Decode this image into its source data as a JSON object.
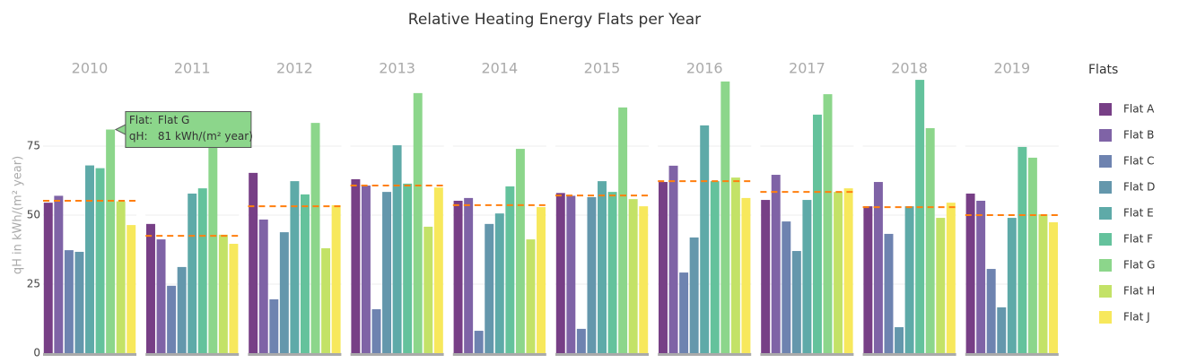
{
  "chart_data": {
    "type": "bar",
    "title": "Relative Heating Energy Flats per Year",
    "y_label": "qH in kWh/(m² year)",
    "legend_title": "Flats",
    "ylim": [
      0,
      100
    ],
    "yticks": [
      0,
      25,
      50,
      75
    ],
    "grid": true,
    "categories": [
      "2010",
      "2011",
      "2012",
      "2013",
      "2014",
      "2015",
      "2016",
      "2017",
      "2018",
      "2019"
    ],
    "series": [
      {
        "name": "Flat A",
        "color": "#773f86",
        "values": [
          54.5,
          46.8,
          65.3,
          63,
          55.2,
          58,
          62,
          55.5,
          53.2,
          57.8
        ]
      },
      {
        "name": "Flat B",
        "color": "#7f63a6",
        "values": [
          57,
          41.2,
          48.4,
          60.7,
          56.2,
          57,
          67.9,
          64.6,
          62,
          55.2
        ]
      },
      {
        "name": "Flat C",
        "color": "#6e83b0",
        "values": [
          37.3,
          24.4,
          19.5,
          15.9,
          8.1,
          8.8,
          29.2,
          47.7,
          43.2,
          30.5
        ]
      },
      {
        "name": "Flat D",
        "color": "#6497ac",
        "values": [
          36.7,
          31.2,
          43.8,
          58.4,
          46.8,
          56.5,
          41.9,
          37,
          9.4,
          16.6
        ]
      },
      {
        "name": "Flat E",
        "color": "#5eaaa8",
        "values": [
          68,
          57.8,
          62.3,
          75.3,
          50.6,
          62.3,
          82.5,
          55.5,
          53.2,
          49
        ]
      },
      {
        "name": "Flat F",
        "color": "#64c29c",
        "values": [
          67,
          59.7,
          57.5,
          61.4,
          60.4,
          58.4,
          62.3,
          86.4,
          99,
          74.7
        ]
      },
      {
        "name": "Flat G",
        "color": "#8cd68b",
        "values": [
          81,
          79,
          83.4,
          94.2,
          74,
          89,
          98.4,
          93.8,
          81.5,
          70.8
        ]
      },
      {
        "name": "Flat H",
        "color": "#c3e267",
        "values": [
          55,
          42.9,
          38,
          45.8,
          41.2,
          55.8,
          63.6,
          58.4,
          49,
          50.3
        ]
      },
      {
        "name": "Flat J",
        "color": "#f7e85c",
        "values": [
          46.4,
          39.6,
          53.6,
          60,
          52.9,
          53.2,
          56.2,
          59.7,
          54.5,
          47.4
        ]
      }
    ],
    "mean_line": {
      "color": "#ff7f0e",
      "values": [
        55.2,
        42.5,
        53.2,
        60.7,
        53.6,
        57.1,
        62.3,
        58.4,
        52.9,
        50
      ]
    },
    "tooltip": {
      "label1": "Flat:",
      "value1": "Flat G",
      "label2": "qH:",
      "value2": "81 kWh/(m² year)"
    }
  }
}
